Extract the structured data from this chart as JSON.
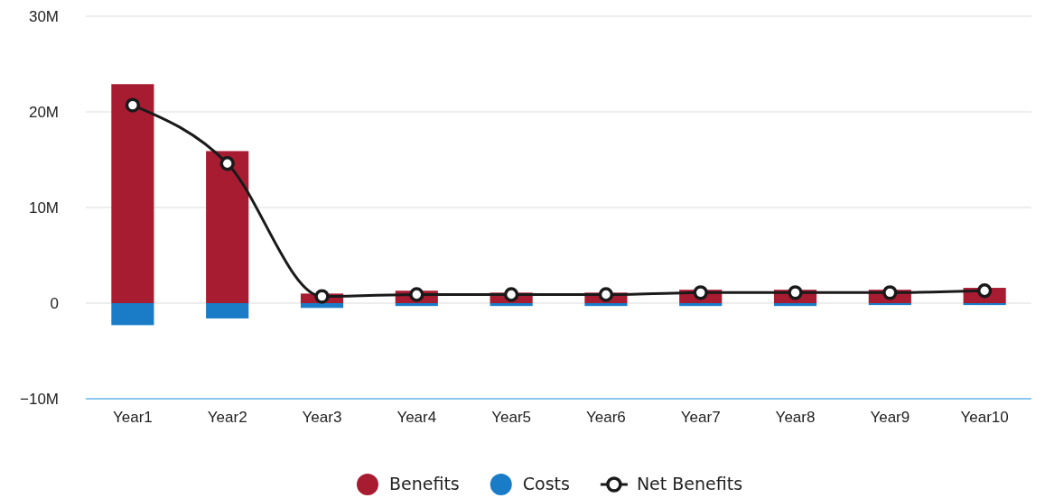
{
  "chart_data": {
    "type": "bar",
    "stacked": true,
    "categories": [
      "Year1",
      "Year2",
      "Year3",
      "Year4",
      "Year5",
      "Year6",
      "Year7",
      "Year8",
      "Year9",
      "Year10"
    ],
    "series": [
      {
        "name": "Benefits",
        "color": "#a81c32",
        "values": [
          22.9,
          15.9,
          1.0,
          1.3,
          1.1,
          1.1,
          1.4,
          1.4,
          1.4,
          1.6
        ]
      },
      {
        "name": "Costs",
        "color": "#1a7cc6",
        "values": [
          -2.3,
          -1.6,
          -0.5,
          -0.3,
          -0.3,
          -0.3,
          -0.3,
          -0.3,
          -0.2,
          -0.2
        ]
      },
      {
        "name": "Net Benefits",
        "type": "line",
        "color": "#1a1a1a",
        "marker": "circle",
        "values": [
          20.7,
          14.6,
          0.7,
          0.9,
          0.9,
          0.9,
          1.1,
          1.1,
          1.1,
          1.3
        ]
      }
    ],
    "ylim": [
      -10,
      30
    ],
    "yticks": [
      {
        "value": -10,
        "label": "−10M"
      },
      {
        "value": 0,
        "label": "0"
      },
      {
        "value": 10,
        "label": "10M"
      },
      {
        "value": 20,
        "label": "20M"
      },
      {
        "value": 30,
        "label": "30M"
      }
    ],
    "grid": "y",
    "legend": "bottom"
  }
}
